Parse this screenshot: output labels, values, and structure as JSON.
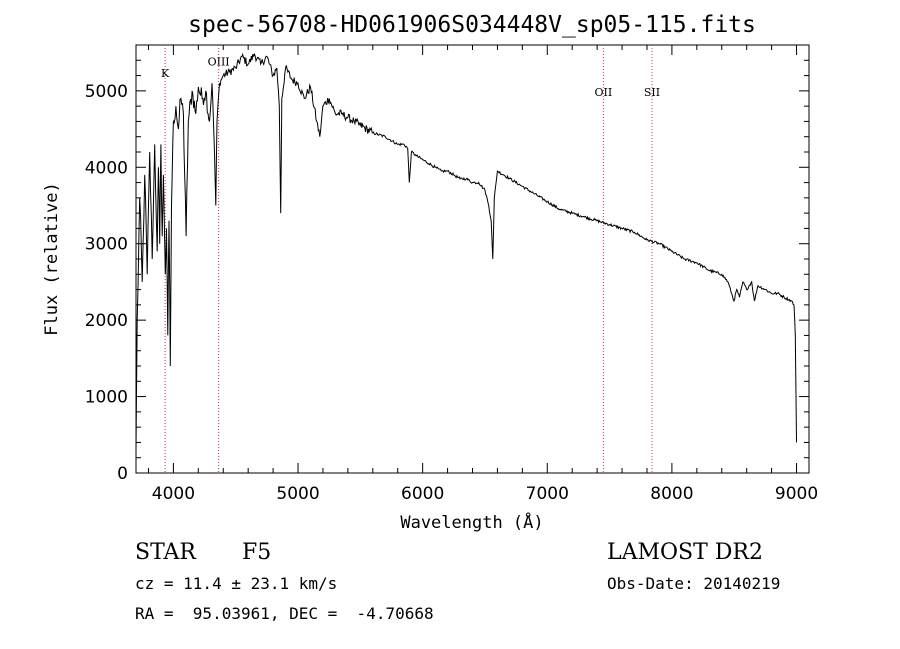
{
  "chart_data": {
    "type": "line",
    "title": "spec-56708-HD061906S034448V_sp05-115.fits",
    "xlabel": "Wavelength (Å)",
    "ylabel": "Flux (relative)",
    "xlim": [
      3700,
      9100
    ],
    "ylim": [
      0,
      5600
    ],
    "x_ticks": [
      4000,
      5000,
      6000,
      7000,
      8000,
      9000
    ],
    "y_ticks": [
      0,
      1000,
      2000,
      3000,
      4000,
      5000
    ],
    "x_tick_labels": [
      "4000",
      "5000",
      "6000",
      "7000",
      "8000",
      "9000"
    ],
    "y_tick_labels": [
      "0",
      "1000",
      "2000",
      "3000",
      "4000",
      "5000"
    ],
    "series": [
      {
        "name": "spectrum",
        "x": [
          3700,
          3710,
          3730,
          3750,
          3770,
          3790,
          3810,
          3830,
          3850,
          3870,
          3880,
          3890,
          3900,
          3910,
          3920,
          3935,
          3945,
          3955,
          3965,
          3975,
          3985,
          4000,
          4020,
          4040,
          4060,
          4080,
          4102,
          4120,
          4150,
          4180,
          4200,
          4230,
          4260,
          4290,
          4310,
          4330,
          4340,
          4350,
          4370,
          4400,
          4450,
          4500,
          4550,
          4600,
          4650,
          4700,
          4750,
          4800,
          4830,
          4850,
          4861,
          4870,
          4900,
          4950,
          5000,
          5050,
          5100,
          5150,
          5175,
          5200,
          5250,
          5300,
          5350,
          5400,
          5450,
          5500,
          5600,
          5700,
          5800,
          5850,
          5880,
          5893,
          5910,
          5950,
          6000,
          6050,
          6100,
          6150,
          6200,
          6250,
          6300,
          6350,
          6400,
          6450,
          6500,
          6530,
          6550,
          6563,
          6575,
          6600,
          6650,
          6700,
          6800,
          6900,
          7000,
          7100,
          7200,
          7300,
          7400,
          7500,
          7600,
          7700,
          7800,
          7900,
          8000,
          8100,
          8200,
          8300,
          8400,
          8450,
          8498,
          8520,
          8542,
          8570,
          8600,
          8640,
          8662,
          8690,
          8750,
          8800,
          8850,
          8900,
          8960,
          8980,
          8990,
          9000
        ],
        "y": [
          300,
          2000,
          3600,
          2500,
          3900,
          2600,
          4200,
          2800,
          4300,
          2900,
          4000,
          3000,
          4300,
          3100,
          3900,
          2600,
          3200,
          1800,
          3300,
          1400,
          3500,
          4600,
          4800,
          4500,
          4900,
          4700,
          3100,
          4600,
          5000,
          4700,
          5050,
          4900,
          5000,
          4600,
          5100,
          4200,
          3500,
          4600,
          5100,
          5200,
          5250,
          5300,
          5450,
          5350,
          5480,
          5350,
          5450,
          5200,
          5300,
          4800,
          3400,
          4900,
          5300,
          5150,
          5100,
          4900,
          5050,
          4600,
          4400,
          4800,
          4900,
          4700,
          4700,
          4650,
          4600,
          4550,
          4450,
          4400,
          4300,
          4300,
          4250,
          3800,
          4200,
          4150,
          4100,
          4050,
          4000,
          3950,
          3950,
          3900,
          3850,
          3850,
          3800,
          3800,
          3700,
          3500,
          3300,
          2800,
          3600,
          3950,
          3900,
          3850,
          3750,
          3650,
          3550,
          3450,
          3400,
          3350,
          3300,
          3250,
          3200,
          3150,
          3050,
          3000,
          2900,
          2800,
          2750,
          2650,
          2600,
          2500,
          2250,
          2400,
          2300,
          2500,
          2400,
          2500,
          2250,
          2450,
          2400,
          2350,
          2350,
          2300,
          2250,
          2200,
          1800,
          400
        ]
      }
    ],
    "lines": [
      {
        "label": "K",
        "x": 3934,
        "label_y": 5180
      },
      {
        "label": "OIII",
        "x": 4363,
        "label_y": 5330
      },
      {
        "label": "OII",
        "x": 7450,
        "label_y": 4930
      },
      {
        "label": "SII",
        "x": 7840,
        "label_y": 4930
      }
    ],
    "line_color": "#cc3333"
  },
  "info": {
    "class": "STAR",
    "subclass": "F5",
    "cz": "cz = 11.4 ± 23.1 km/s",
    "radec": "RA =  95.03961, DEC =  -4.70668",
    "survey": "LAMOST DR2",
    "obsdate": "Obs-Date: 20140219"
  }
}
